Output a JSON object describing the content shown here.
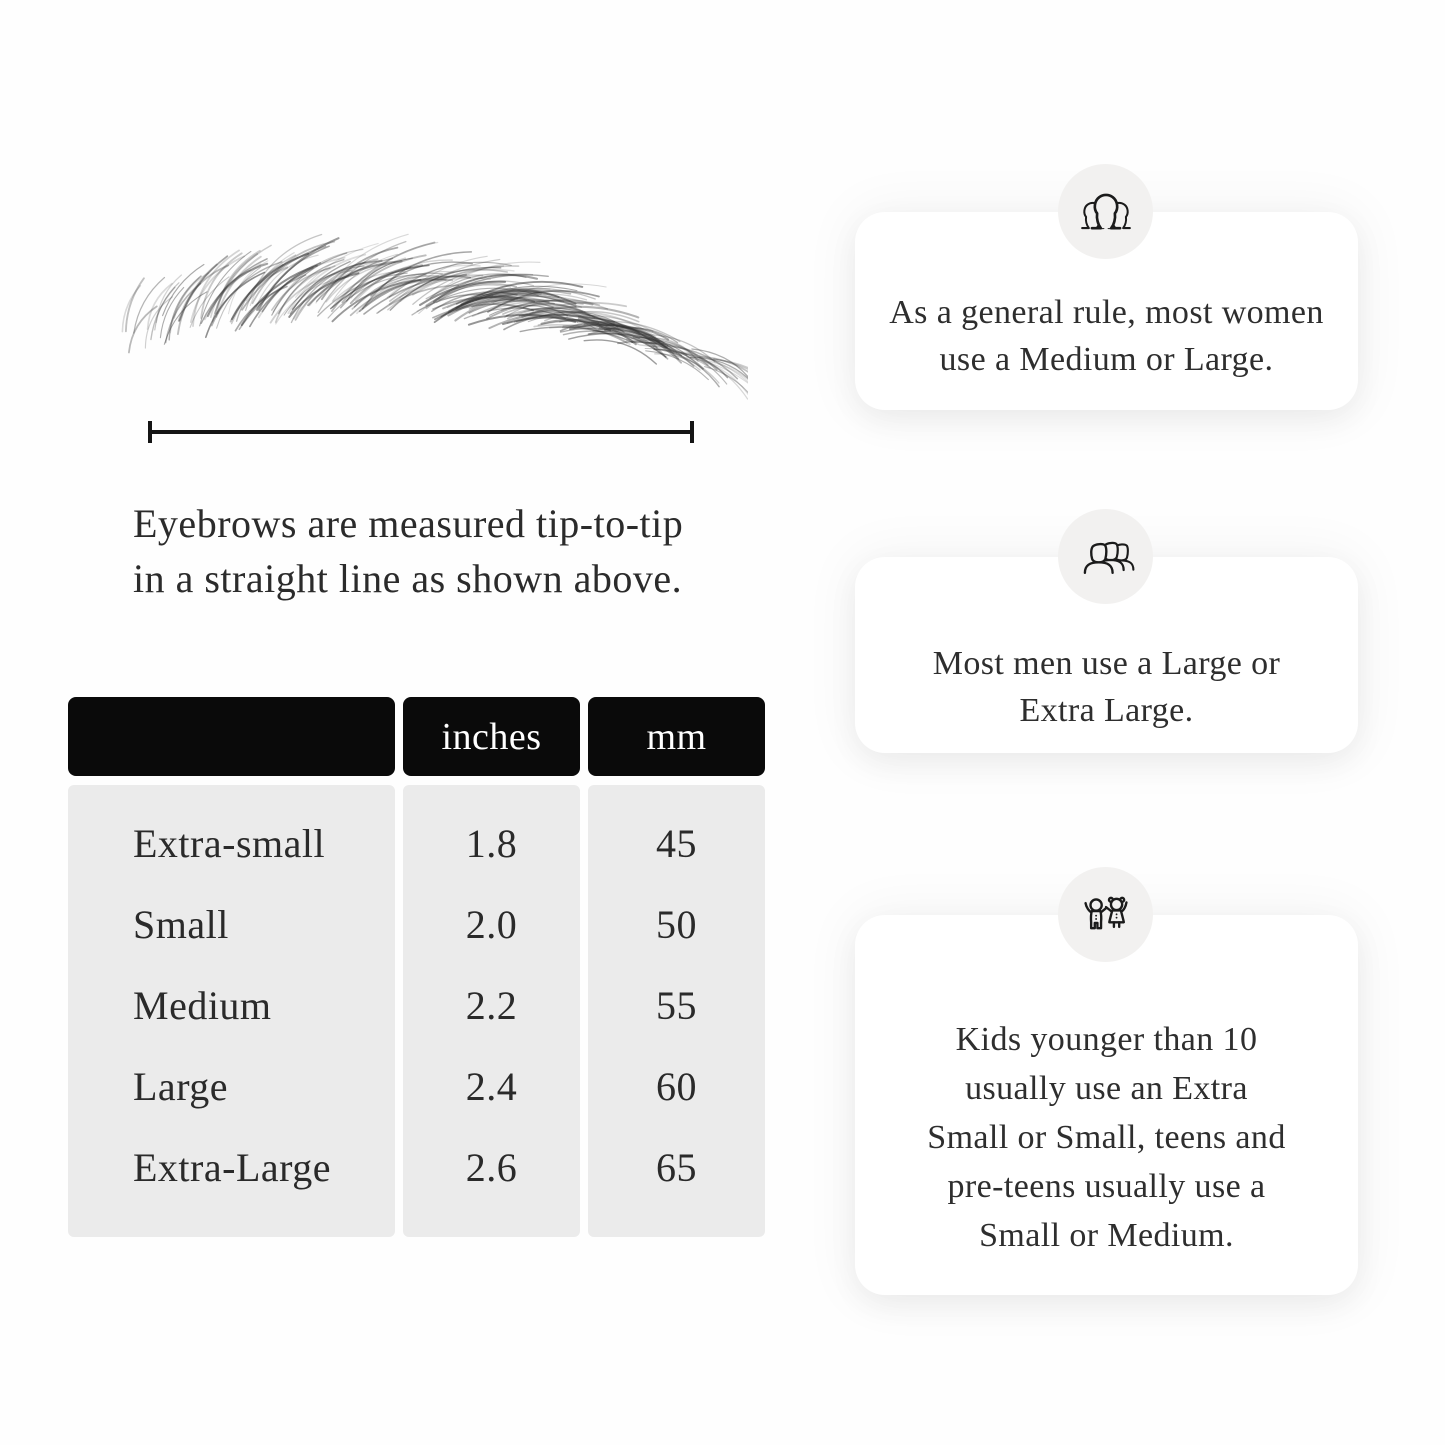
{
  "page": {
    "background": "#fefefe"
  },
  "measurement_diagram": {
    "illustration": "eyebrow-sketch",
    "caption_lines": [
      "Eyebrows are measured tip-to-tip",
      "in a straight line as shown above."
    ]
  },
  "size_table": {
    "column_headers": [
      "",
      "inches",
      "mm"
    ],
    "rows": [
      {
        "size": "Extra-small",
        "inches": "1.8",
        "mm": "45"
      },
      {
        "size": "Small",
        "inches": "2.0",
        "mm": "50"
      },
      {
        "size": "Medium",
        "inches": "2.2",
        "mm": "55"
      },
      {
        "size": "Large",
        "inches": "2.4",
        "mm": "60"
      },
      {
        "size": "Extra-Large",
        "inches": "2.6",
        "mm": "65"
      }
    ],
    "colors": {
      "header_bg": "#0a0a0a",
      "header_text": "#ffffff",
      "body_bg": "#ebebeb",
      "text": "#2a2a2a"
    }
  },
  "info_cards": [
    {
      "icon": "women-group-icon",
      "lines": [
        "As a general rule, most women",
        "use a Medium or Large."
      ]
    },
    {
      "icon": "men-group-icon",
      "lines": [
        "Most men use a Large or",
        "Extra Large."
      ]
    },
    {
      "icon": "kids-icon",
      "lines": [
        "Kids younger than 10",
        "usually use an Extra",
        "Small or Small, teens and",
        "pre-teens usually use a",
        "Small or Medium."
      ]
    }
  ]
}
